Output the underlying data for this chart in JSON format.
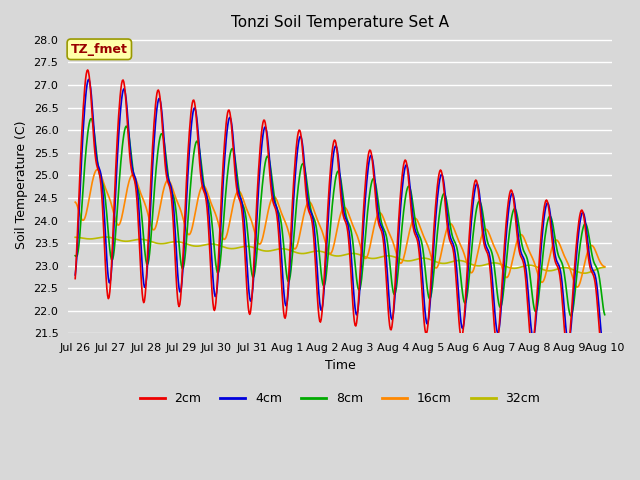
{
  "title": "Tonzi Soil Temperature Set A",
  "xlabel": "Time",
  "ylabel": "Soil Temperature (C)",
  "ylim": [
    21.5,
    28.1
  ],
  "yticks": [
    21.5,
    22.0,
    22.5,
    23.0,
    23.5,
    24.0,
    24.5,
    25.0,
    25.5,
    26.0,
    26.5,
    27.0,
    27.5,
    28.0
  ],
  "background_color": "#d8d8d8",
  "plot_background": "#d8d8d8",
  "grid_color": "#ffffff",
  "line_colors": {
    "2cm": "#ee0000",
    "4cm": "#0000dd",
    "8cm": "#00aa00",
    "16cm": "#ff8800",
    "32cm": "#bbbb00"
  },
  "line_width": 1.2,
  "legend_label": "TZ_fmet",
  "legend_label_color": "#990000",
  "legend_box_facecolor": "#ffffaa",
  "legend_box_edgecolor": "#999900",
  "day_labels": [
    "Jul 26",
    "Jul 27",
    "Jul 28",
    "Jul 29",
    "Jul 30",
    "Jul 31",
    "Aug 1",
    "Aug 2",
    "Aug 3",
    "Aug 4",
    "Aug 5",
    "Aug 6",
    "Aug 7",
    "Aug 8",
    "Aug 9",
    "Aug 10"
  ]
}
